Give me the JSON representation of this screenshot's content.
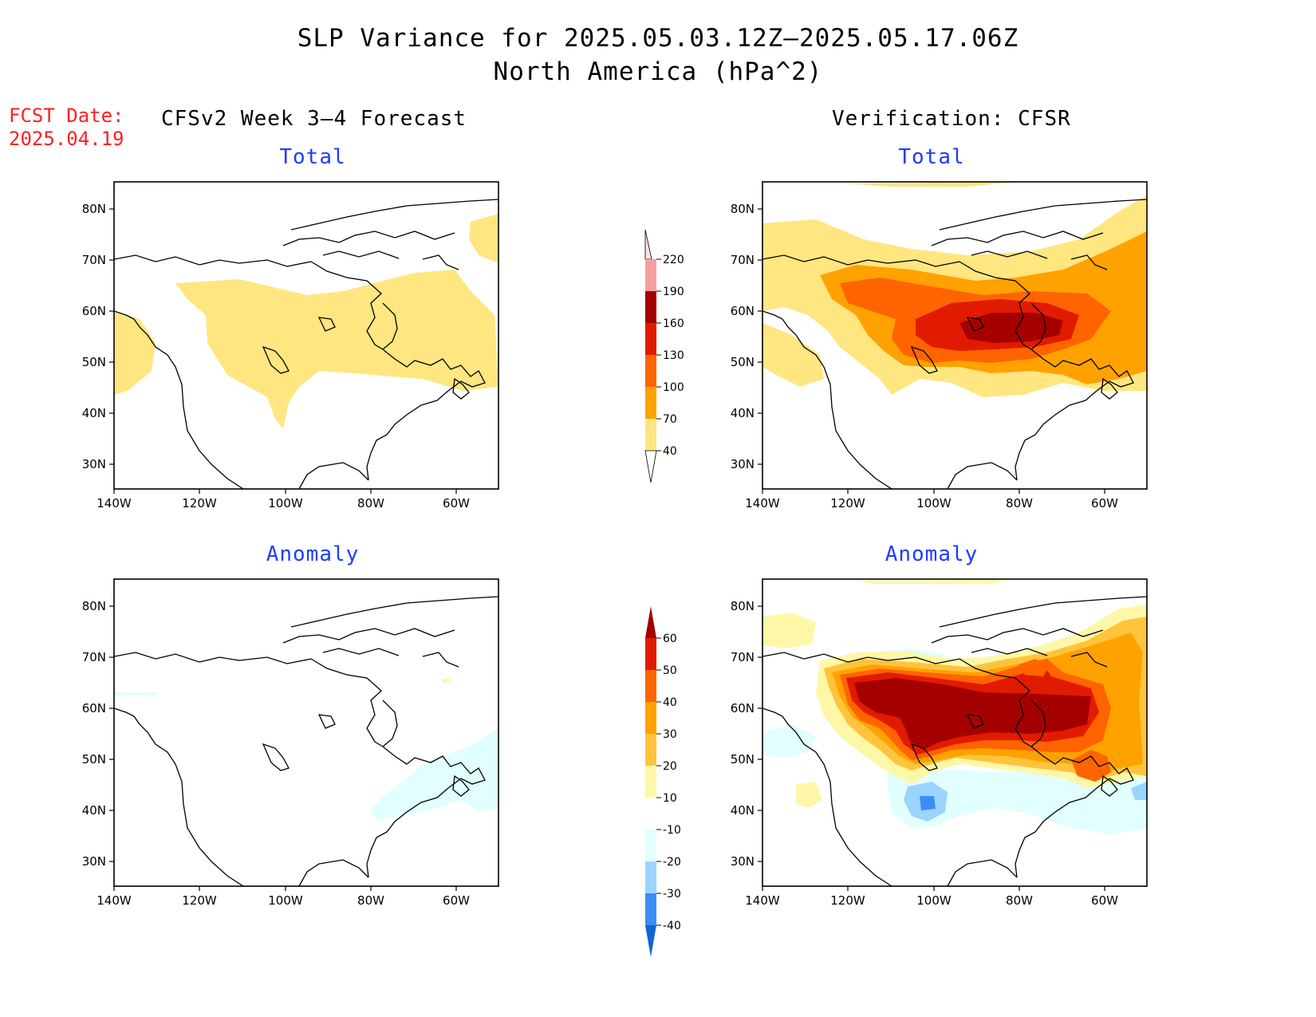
{
  "header": {
    "title_line1": "SLP Variance for 2025.05.03.12Z–2025.05.17.06Z",
    "title_line2": "North America (hPa^2)",
    "fcst_label": "FCST Date:",
    "fcst_date": "2025.04.19"
  },
  "columns": {
    "left_heading": "CFSv2 Week 3–4 Forecast",
    "right_heading": "Verification: CFSR"
  },
  "panels": {
    "fcst_total_title": "Total",
    "fcst_anom_title": "Anomaly",
    "ver_total_title": "Total",
    "ver_anom_title": "Anomaly"
  },
  "axes": {
    "lat_labels": [
      "80N",
      "70N",
      "60N",
      "50N",
      "40N",
      "30N"
    ],
    "lon_labels": [
      "140W",
      "120W",
      "100W",
      "80W",
      "60W"
    ]
  },
  "colorbars": {
    "total": {
      "levels": [
        "40",
        "70",
        "100",
        "130",
        "160",
        "190",
        "220"
      ],
      "colors": [
        "#ffe680",
        "#ffa200",
        "#ff6400",
        "#e11b00",
        "#a50000",
        "#f5a0a0",
        "#ffe0e0"
      ]
    },
    "anomaly": {
      "levels": [
        "60",
        "50",
        "40",
        "30",
        "20",
        "10",
        "-10",
        "-20",
        "-30",
        "-40"
      ],
      "colors": [
        "#a50000",
        "#e11b00",
        "#ff6400",
        "#ffa200",
        "#ffc43c",
        "#fff7a8",
        "#ffffff",
        "#e0fffe",
        "#9ad4ff",
        "#3c8cf5",
        "#1463d2"
      ]
    }
  }
}
